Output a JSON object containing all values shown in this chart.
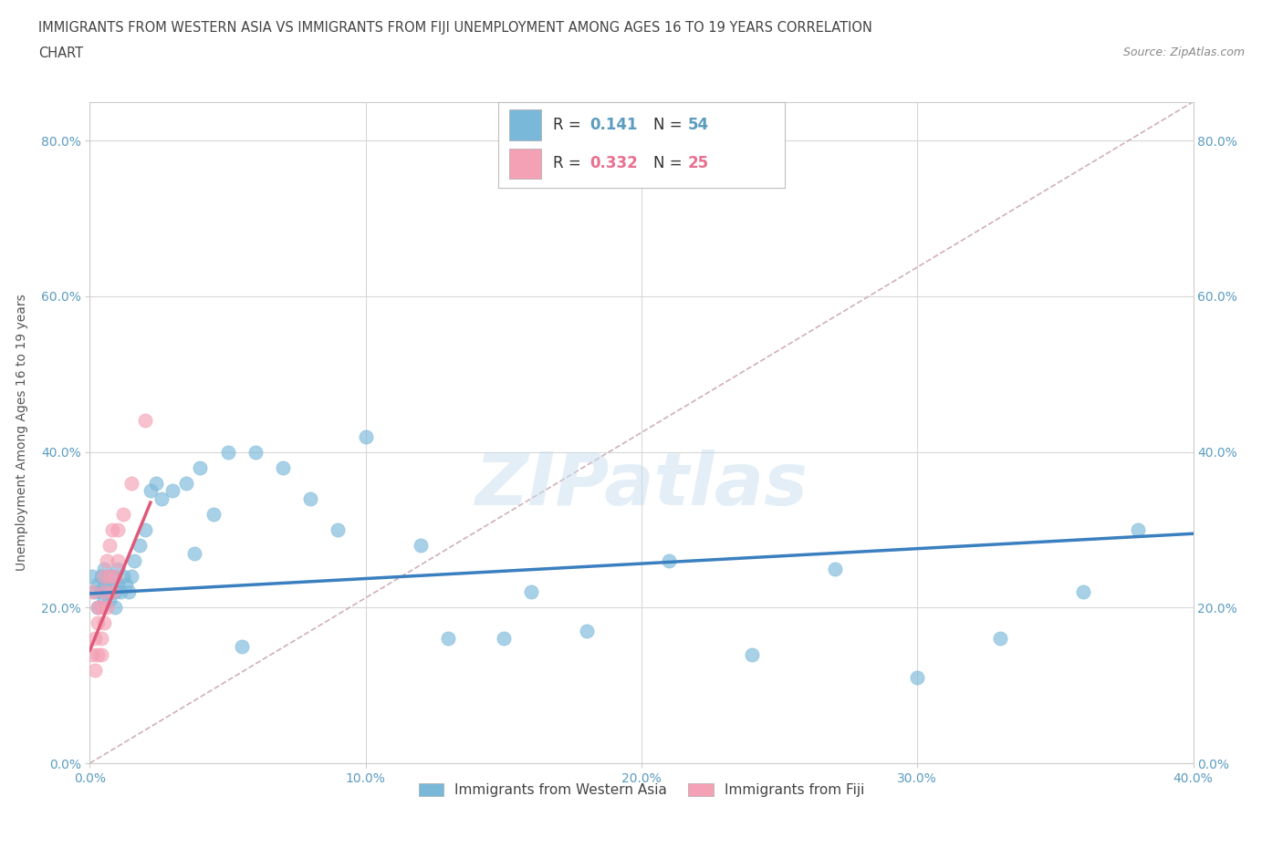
{
  "title_line1": "IMMIGRANTS FROM WESTERN ASIA VS IMMIGRANTS FROM FIJI UNEMPLOYMENT AMONG AGES 16 TO 19 YEARS CORRELATION",
  "title_line2": "CHART",
  "source_text": "Source: ZipAtlas.com",
  "ylabel_label": "Unemployment Among Ages 16 to 19 years",
  "xlim": [
    0.0,
    0.4
  ],
  "ylim": [
    0.0,
    0.85
  ],
  "r_western_asia": 0.141,
  "n_western_asia": 54,
  "r_fiji": 0.332,
  "n_fiji": 25,
  "color_western_asia": "#7ab8d9",
  "color_fiji": "#f4a0b5",
  "trendline_color_western_asia": "#3a7fbf",
  "trendline_color_fiji": "#e05878",
  "diagonal_color": "#d0b0b8",
  "background_color": "#ffffff",
  "grid_color": "#d8d8d8",
  "watermark": "ZIPatlas",
  "legend_label_wa": "Immigrants from Western Asia",
  "legend_label_fiji": "Immigrants from Fiji",
  "wa_x": [
    0.001,
    0.002,
    0.003,
    0.003,
    0.004,
    0.004,
    0.005,
    0.005,
    0.005,
    0.006,
    0.006,
    0.007,
    0.007,
    0.008,
    0.008,
    0.009,
    0.009,
    0.01,
    0.01,
    0.011,
    0.012,
    0.013,
    0.014,
    0.015,
    0.016,
    0.018,
    0.02,
    0.022,
    0.024,
    0.026,
    0.03,
    0.035,
    0.04,
    0.045,
    0.05,
    0.06,
    0.07,
    0.08,
    0.09,
    0.1,
    0.12,
    0.15,
    0.18,
    0.21,
    0.24,
    0.27,
    0.3,
    0.33,
    0.36,
    0.038,
    0.055,
    0.13,
    0.16,
    0.38
  ],
  "wa_y": [
    0.24,
    0.22,
    0.2,
    0.23,
    0.22,
    0.24,
    0.21,
    0.23,
    0.25,
    0.22,
    0.24,
    0.21,
    0.23,
    0.22,
    0.24,
    0.2,
    0.22,
    0.23,
    0.25,
    0.22,
    0.24,
    0.23,
    0.22,
    0.24,
    0.26,
    0.28,
    0.3,
    0.35,
    0.36,
    0.34,
    0.35,
    0.36,
    0.38,
    0.32,
    0.4,
    0.4,
    0.38,
    0.34,
    0.3,
    0.42,
    0.28,
    0.16,
    0.17,
    0.26,
    0.14,
    0.25,
    0.11,
    0.16,
    0.22,
    0.27,
    0.15,
    0.16,
    0.22,
    0.3
  ],
  "fiji_x": [
    0.001,
    0.001,
    0.002,
    0.002,
    0.003,
    0.003,
    0.003,
    0.004,
    0.004,
    0.004,
    0.005,
    0.005,
    0.005,
    0.006,
    0.006,
    0.007,
    0.007,
    0.008,
    0.008,
    0.009,
    0.01,
    0.01,
    0.012,
    0.015,
    0.02
  ],
  "fiji_y": [
    0.22,
    0.14,
    0.12,
    0.16,
    0.14,
    0.18,
    0.2,
    0.14,
    0.16,
    0.2,
    0.18,
    0.22,
    0.24,
    0.2,
    0.26,
    0.24,
    0.28,
    0.22,
    0.3,
    0.24,
    0.26,
    0.3,
    0.32,
    0.36,
    0.44
  ],
  "wa_trendline_x0": 0.0,
  "wa_trendline_x1": 0.4,
  "wa_trendline_y0": 0.218,
  "wa_trendline_y1": 0.295,
  "fiji_trendline_x0": 0.0,
  "fiji_trendline_x1": 0.022,
  "fiji_trendline_y0": 0.145,
  "fiji_trendline_y1": 0.335
}
